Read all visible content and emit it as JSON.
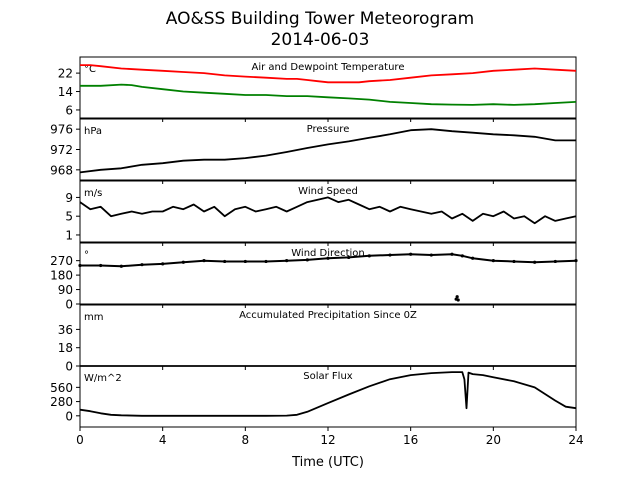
{
  "title_line1": "AO&SS Building Tower Meteorogram",
  "title_line2": "2014-06-03",
  "xlabel": "Time (UTC)",
  "x_ticks": [
    0,
    4,
    8,
    12,
    16,
    20,
    24
  ],
  "colors": {
    "temperature": "#ff0000",
    "dewpoint": "#008000",
    "default": "#000000"
  },
  "chart_data": [
    {
      "type": "line",
      "title": "Air and Dewpoint Temperature",
      "unit": "°C",
      "yticks": [
        6,
        14,
        22
      ],
      "ylim": [
        2.5,
        29
      ],
      "xlim": [
        0,
        24
      ],
      "series": [
        {
          "color": "#ff0000",
          "x": [
            0,
            0.5,
            1,
            2,
            3,
            4,
            5,
            6,
            7,
            8,
            9,
            10,
            10.5,
            11,
            11.5,
            12,
            12.5,
            13,
            13.5,
            14,
            15,
            16,
            17,
            18,
            19,
            20,
            21,
            22,
            23,
            24
          ],
          "y": [
            25.5,
            25.5,
            25,
            24,
            23.5,
            23,
            22.5,
            22,
            21,
            20.5,
            20,
            19.5,
            19.5,
            19,
            18.5,
            18,
            18,
            18,
            18,
            18.5,
            19,
            20,
            21,
            21.5,
            22,
            23,
            23.5,
            24,
            23.5,
            23
          ]
        },
        {
          "color": "#008000",
          "x": [
            0,
            1,
            2,
            2.5,
            3,
            4,
            5,
            6,
            7,
            8,
            9,
            10,
            11,
            12,
            13,
            14,
            15,
            16,
            17,
            18,
            19,
            20,
            21,
            22,
            23,
            24
          ],
          "y": [
            16.5,
            16.5,
            17,
            16.8,
            16,
            15,
            14,
            13.5,
            13,
            12.5,
            12.5,
            12,
            12,
            11.5,
            11,
            10.5,
            9.5,
            9,
            8.5,
            8.3,
            8.2,
            8.5,
            8.2,
            8.5,
            9,
            9.5
          ]
        }
      ]
    },
    {
      "type": "line",
      "title": "Pressure",
      "unit": "hPa",
      "yticks": [
        968,
        972,
        976
      ],
      "ylim": [
        966,
        978
      ],
      "xlim": [
        0,
        24
      ],
      "series": [
        {
          "color": "#000000",
          "x": [
            0,
            1,
            2,
            3,
            4,
            5,
            6,
            7,
            8,
            9,
            10,
            11,
            12,
            13,
            14,
            15,
            16,
            17,
            18,
            19,
            20,
            21,
            22,
            23,
            24
          ],
          "y": [
            967.5,
            968,
            968.3,
            969,
            969.3,
            969.8,
            970,
            970,
            970.3,
            970.8,
            971.5,
            972.3,
            973,
            973.6,
            974.3,
            975,
            975.8,
            976,
            975.6,
            975.3,
            975,
            974.8,
            974.5,
            973.8,
            973.8
          ]
        }
      ]
    },
    {
      "type": "line",
      "title": "Wind Speed",
      "unit": "m/s",
      "yticks": [
        1,
        5,
        9
      ],
      "ylim": [
        -0.5,
        12.5
      ],
      "xlim": [
        0,
        24
      ],
      "series": [
        {
          "color": "#000000",
          "x": [
            0,
            0.5,
            1,
            1.5,
            2,
            2.5,
            3,
            3.5,
            4,
            4.5,
            5,
            5.5,
            6,
            6.5,
            7,
            7.5,
            8,
            8.5,
            9,
            9.5,
            10,
            10.5,
            11,
            11.5,
            12,
            12.5,
            13,
            13.5,
            14,
            14.5,
            15,
            15.5,
            16,
            16.5,
            17,
            17.5,
            18,
            18.5,
            19,
            19.5,
            20,
            20.5,
            21,
            21.5,
            22,
            22.5,
            23,
            23.5,
            24
          ],
          "y": [
            8,
            6.5,
            7,
            5,
            5.5,
            6,
            5.5,
            6,
            6,
            7,
            6.5,
            7.5,
            6,
            7,
            5,
            6.5,
            7,
            6,
            6.5,
            7,
            6,
            7,
            8,
            8.5,
            9,
            8,
            8.5,
            7.5,
            6.5,
            7,
            6,
            7,
            6.5,
            6,
            5.5,
            6,
            4.5,
            5.5,
            4,
            5.5,
            5,
            6,
            4.5,
            5,
            3.5,
            5,
            4,
            4.5,
            5
          ]
        }
      ]
    },
    {
      "type": "scatter",
      "title": "Wind Direction",
      "unit": "°",
      "yticks": [
        0,
        90,
        180,
        270
      ],
      "ylim": [
        0,
        380
      ],
      "xlim": [
        0,
        24
      ],
      "series": [
        {
          "color": "#000000",
          "x": [
            0,
            1,
            2,
            3,
            4,
            5,
            6,
            7,
            8,
            9,
            10,
            11,
            12,
            13,
            14,
            15,
            16,
            17,
            18,
            18.5,
            19,
            20,
            21,
            22,
            23,
            24
          ],
          "y": [
            240,
            240,
            235,
            245,
            250,
            260,
            270,
            265,
            265,
            265,
            270,
            275,
            285,
            290,
            300,
            305,
            310,
            305,
            310,
            300,
            285,
            270,
            265,
            260,
            265,
            270
          ]
        },
        {
          "color": "#000000",
          "x": [
            18.2,
            18.25,
            18.3
          ],
          "y": [
            30,
            45,
            25
          ]
        }
      ]
    },
    {
      "type": "line",
      "title": "Accumulated Precipitation Since 0Z",
      "unit": "mm",
      "yticks": [
        0,
        18,
        36
      ],
      "ylim": [
        0,
        60
      ],
      "xlim": [
        0,
        24
      ],
      "series": [
        {
          "color": "#000000",
          "x": [
            0,
            24
          ],
          "y": [
            0,
            0
          ]
        }
      ]
    },
    {
      "type": "line",
      "title": "Solar Flux",
      "unit": "W/m^2",
      "yticks": [
        0,
        280,
        560
      ],
      "ylim": [
        -220,
        980
      ],
      "xlim": [
        0,
        24
      ],
      "series": [
        {
          "color": "#000000",
          "x": [
            0,
            0.5,
            1,
            1.5,
            2,
            3,
            4,
            5,
            6,
            7,
            8,
            9,
            10,
            10.5,
            11,
            12,
            13,
            14,
            15,
            16,
            17,
            18,
            18.5,
            18.6,
            18.7,
            18.8,
            19,
            19.5,
            20,
            21,
            22,
            22.5,
            23,
            23.5,
            24
          ],
          "y": [
            120,
            90,
            50,
            20,
            10,
            0,
            0,
            0,
            0,
            0,
            0,
            0,
            5,
            20,
            80,
            250,
            420,
            580,
            720,
            800,
            840,
            860,
            860,
            720,
            150,
            850,
            820,
            800,
            760,
            680,
            560,
            430,
            300,
            180,
            150
          ]
        }
      ]
    }
  ]
}
